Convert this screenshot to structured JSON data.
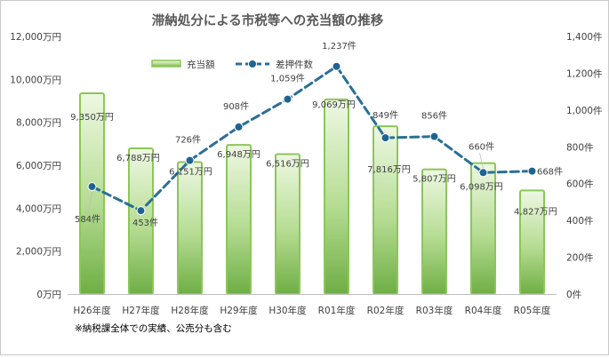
{
  "chart_data": {
    "type": "bar",
    "title": "滞納処分による市税等への充当額の推移",
    "categories": [
      "H26年度",
      "H27年度",
      "H28年度",
      "H29年度",
      "H30年度",
      "R01年度",
      "R02年度",
      "R03年度",
      "R04年度",
      "R05年度"
    ],
    "series": [
      {
        "name": "充当額",
        "type": "bar",
        "axis": "left",
        "values": [
          9350,
          6788,
          6151,
          6948,
          6516,
          9069,
          7816,
          5807,
          6098,
          4827
        ],
        "labels": [
          "9,350万円",
          "6,788万円",
          "6,151万円",
          "6,948万円",
          "6,516万円",
          "9,069万円",
          "7,816万円",
          "5,807万円",
          "6,098万円",
          "4,827万円"
        ]
      },
      {
        "name": "差押件数",
        "type": "line",
        "axis": "right",
        "values": [
          584,
          453,
          726,
          908,
          1059,
          1237,
          849,
          856,
          660,
          668
        ],
        "labels": [
          "584件",
          "453件",
          "726件",
          "908件",
          "1,059件",
          "1,237件",
          "849件",
          "856件",
          "660件",
          "668件"
        ]
      }
    ],
    "y_left": {
      "min": 0,
      "max": 12000,
      "ticks": [
        "0万円",
        "2,000万円",
        "4,000万円",
        "6,000万円",
        "8,000万円",
        "10,000万円",
        "12,000万円"
      ]
    },
    "y_right": {
      "min": 0,
      "max": 1400,
      "ticks": [
        "0件",
        "200件",
        "400件",
        "600件",
        "800件",
        "1,000件",
        "1,200件",
        "1,400件"
      ]
    },
    "legend_position": "top-center",
    "grid": false,
    "colors": {
      "bar_fill_light": "#e8f5d8",
      "bar_fill_dark": "#70ad47",
      "bar_stroke": "#8cc65a",
      "line": "#2a6f97",
      "marker": "#1f6391",
      "axis": "#bfbfbf",
      "text": "#404040"
    },
    "footnote": "※納税課全体での実績、公売分も含む"
  }
}
